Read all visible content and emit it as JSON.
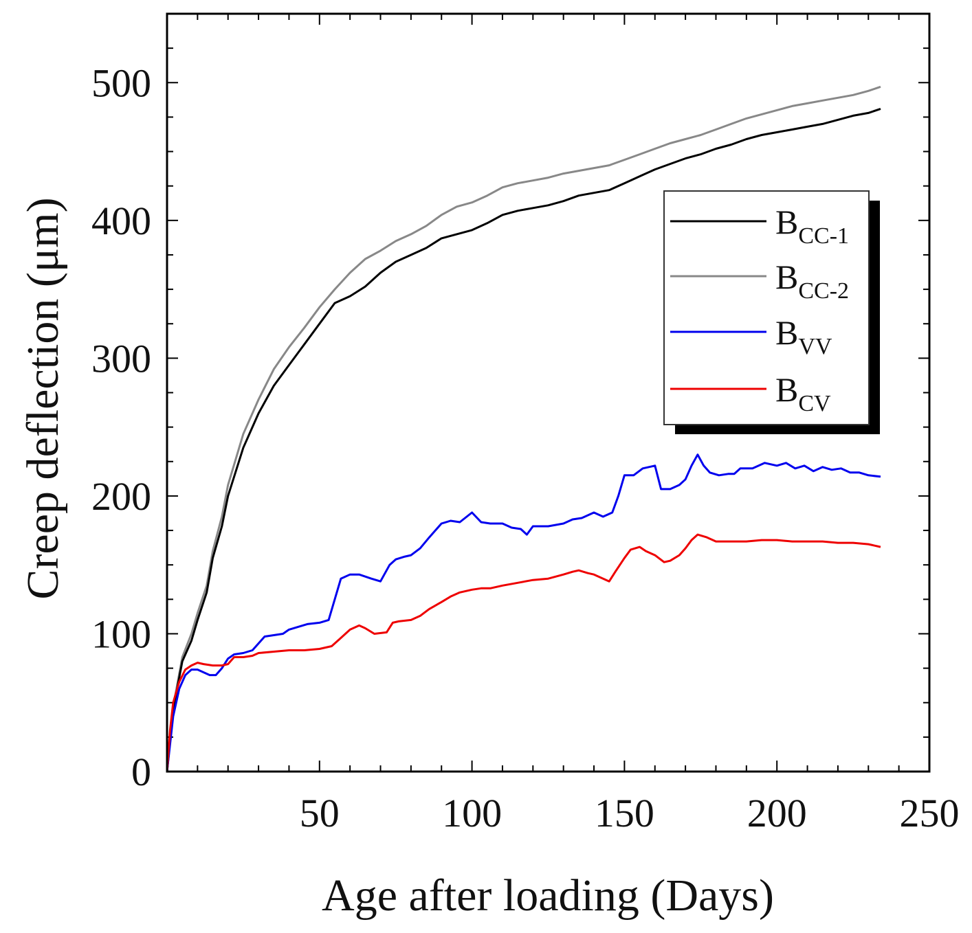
{
  "chart_data": {
    "type": "line",
    "title": "",
    "xlabel": "Age after loading (Days)",
    "ylabel": "Creep deflection (μm)",
    "xlim": [
      0,
      250
    ],
    "ylim": [
      0,
      550
    ],
    "xticks": [
      50,
      100,
      150,
      200,
      250
    ],
    "yticks": [
      0,
      100,
      200,
      300,
      400,
      500
    ],
    "xtick_labels": [
      "50",
      "100",
      "150",
      "200",
      "250"
    ],
    "ytick_labels": [
      "0",
      "100",
      "200",
      "300",
      "400",
      "500"
    ],
    "legend_position": "right",
    "series": [
      {
        "name": "B_CC-1",
        "label_main": "B",
        "label_sub": "CC-1",
        "color": "#000000",
        "x": [
          0,
          2,
          5,
          8,
          10,
          13,
          15,
          18,
          20,
          25,
          30,
          35,
          40,
          45,
          50,
          55,
          60,
          65,
          70,
          75,
          80,
          85,
          90,
          95,
          100,
          105,
          110,
          115,
          120,
          125,
          130,
          135,
          140,
          145,
          150,
          155,
          160,
          165,
          170,
          175,
          180,
          185,
          190,
          195,
          200,
          205,
          210,
          215,
          220,
          225,
          230,
          234
        ],
        "y": [
          0,
          45,
          80,
          95,
          110,
          130,
          155,
          178,
          200,
          235,
          260,
          280,
          295,
          310,
          325,
          340,
          345,
          352,
          362,
          370,
          375,
          380,
          387,
          390,
          393,
          398,
          404,
          407,
          409,
          411,
          414,
          418,
          420,
          422,
          427,
          432,
          437,
          441,
          445,
          448,
          452,
          455,
          459,
          462,
          464,
          466,
          468,
          470,
          473,
          476,
          478,
          481
        ]
      },
      {
        "name": "B_CC-2",
        "label_main": "B",
        "label_sub": "CC-2",
        "color": "#888888",
        "x": [
          0,
          2,
          5,
          8,
          10,
          13,
          15,
          18,
          20,
          25,
          30,
          35,
          40,
          45,
          50,
          55,
          60,
          65,
          70,
          75,
          80,
          85,
          90,
          95,
          100,
          105,
          110,
          115,
          120,
          125,
          130,
          135,
          140,
          145,
          150,
          155,
          160,
          165,
          170,
          175,
          180,
          185,
          190,
          195,
          200,
          205,
          210,
          215,
          220,
          225,
          230,
          234
        ],
        "y": [
          0,
          47,
          83,
          100,
          115,
          135,
          160,
          185,
          208,
          245,
          270,
          292,
          308,
          322,
          337,
          350,
          362,
          372,
          378,
          385,
          390,
          396,
          404,
          410,
          413,
          418,
          424,
          427,
          429,
          431,
          434,
          436,
          438,
          440,
          444,
          448,
          452,
          456,
          459,
          462,
          466,
          470,
          474,
          477,
          480,
          483,
          485,
          487,
          489,
          491,
          494,
          497
        ]
      },
      {
        "name": "B_VV",
        "label_main": "B",
        "label_sub": "VV",
        "color": "#0000ee",
        "x": [
          0,
          2,
          4,
          6,
          8,
          10,
          12,
          14,
          16,
          18,
          20,
          22,
          25,
          28,
          30,
          32,
          35,
          38,
          40,
          43,
          46,
          50,
          53,
          55,
          57,
          60,
          63,
          67,
          70,
          73,
          75,
          78,
          80,
          83,
          86,
          90,
          93,
          96,
          100,
          103,
          106,
          110,
          113,
          116,
          118,
          120,
          125,
          130,
          133,
          136,
          140,
          143,
          146,
          148,
          150,
          153,
          156,
          160,
          162,
          165,
          168,
          170,
          172,
          174,
          176,
          178,
          181,
          184,
          186,
          188,
          192,
          196,
          200,
          203,
          206,
          209,
          212,
          215,
          218,
          221,
          224,
          227,
          230,
          234
        ],
        "y": [
          0,
          40,
          60,
          70,
          74,
          74,
          72,
          70,
          70,
          75,
          82,
          85,
          86,
          88,
          93,
          98,
          99,
          100,
          103,
          105,
          107,
          108,
          110,
          125,
          140,
          143,
          143,
          140,
          138,
          150,
          154,
          156,
          157,
          162,
          170,
          180,
          182,
          181,
          188,
          181,
          180,
          180,
          177,
          176,
          172,
          178,
          178,
          180,
          183,
          184,
          188,
          185,
          188,
          200,
          215,
          215,
          220,
          222,
          205,
          205,
          208,
          212,
          222,
          230,
          222,
          217,
          215,
          216,
          216,
          220,
          220,
          224,
          222,
          224,
          220,
          222,
          218,
          221,
          219,
          220,
          217,
          217,
          215,
          214
        ]
      },
      {
        "name": "B_CV",
        "label_main": "B",
        "label_sub": "CV",
        "color": "#ee0000",
        "x": [
          0,
          1,
          2,
          4,
          6,
          8,
          10,
          12,
          15,
          18,
          20,
          22,
          25,
          28,
          30,
          35,
          40,
          45,
          50,
          54,
          57,
          60,
          63,
          65,
          68,
          72,
          74,
          76,
          80,
          83,
          86,
          90,
          93,
          96,
          100,
          103,
          106,
          110,
          115,
          120,
          125,
          130,
          133,
          135,
          138,
          140,
          142,
          145,
          147,
          150,
          152,
          155,
          157,
          160,
          163,
          165,
          168,
          170,
          172,
          174,
          177,
          180,
          185,
          190,
          195,
          200,
          205,
          210,
          215,
          220,
          225,
          230,
          234
        ],
        "y": [
          0,
          30,
          50,
          65,
          74,
          77,
          79,
          78,
          77,
          77,
          78,
          83,
          83,
          84,
          86,
          87,
          88,
          88,
          89,
          91,
          97,
          103,
          106,
          104,
          100,
          101,
          108,
          109,
          110,
          113,
          118,
          123,
          127,
          130,
          132,
          133,
          133,
          135,
          137,
          139,
          140,
          143,
          145,
          146,
          144,
          143,
          141,
          138,
          145,
          155,
          161,
          163,
          160,
          157,
          152,
          153,
          157,
          162,
          168,
          172,
          170,
          167,
          167,
          167,
          168,
          168,
          167,
          167,
          167,
          166,
          166,
          165,
          163
        ]
      }
    ]
  }
}
